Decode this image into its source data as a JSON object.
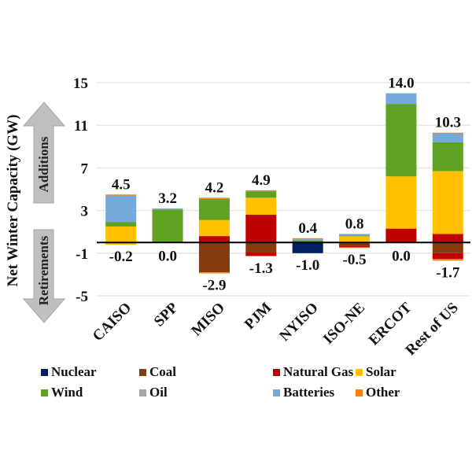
{
  "chart_data": {
    "type": "bar",
    "stacked": true,
    "title": "",
    "xlabel": "",
    "ylabel": "Net Winter Capacity (GW)",
    "ylim": [
      -5,
      15
    ],
    "yticks": [
      15,
      11,
      7,
      3,
      -1,
      -5
    ],
    "grid": true,
    "legend_position": "bottom",
    "annotations": {
      "up_arrow": "Additions",
      "down_arrow": "Retirements"
    },
    "categories": [
      "CAISO",
      "SPP",
      "MISO",
      "PJM",
      "NYISO",
      "ISO-NE",
      "ERCOT",
      "Rest of US"
    ],
    "colors": {
      "Nuclear": "#002060",
      "Coal": "#843C0C",
      "Natural Gas": "#C00000",
      "Solar": "#FFC000",
      "Wind": "#5FA221",
      "Oil": "#A6A6A6",
      "Batteries": "#74A9DA",
      "Other": "#FF7F0E"
    },
    "legend_order": [
      "Nuclear",
      "Coal",
      "Natural Gas",
      "Solar",
      "Wind",
      "Oil",
      "Batteries",
      "Other"
    ],
    "stack_order": [
      "Nuclear",
      "Coal",
      "Natural Gas",
      "Solar",
      "Wind",
      "Oil",
      "Batteries",
      "Other"
    ],
    "additions": [
      {
        "name": "Nuclear",
        "values": [
          0,
          0,
          0,
          0,
          0,
          0,
          0,
          0
        ]
      },
      {
        "name": "Coal",
        "values": [
          0,
          0,
          0,
          0,
          0,
          0,
          0,
          0
        ]
      },
      {
        "name": "Natural Gas",
        "values": [
          0,
          0,
          0.6,
          2.6,
          0,
          0,
          1.3,
          0.8
        ]
      },
      {
        "name": "Solar",
        "values": [
          1.5,
          0,
          1.5,
          1.6,
          0,
          0.6,
          4.9,
          5.9
        ]
      },
      {
        "name": "Wind",
        "values": [
          0.4,
          3.1,
          2.0,
          0.6,
          0.2,
          0.05,
          6.8,
          2.7
        ]
      },
      {
        "name": "Oil",
        "values": [
          0,
          0,
          0,
          0,
          0,
          0,
          0,
          0
        ]
      },
      {
        "name": "Batteries",
        "values": [
          2.5,
          0.1,
          0,
          0.05,
          0.1,
          0.15,
          1.0,
          0.8
        ]
      },
      {
        "name": "Other",
        "values": [
          0.1,
          0,
          0.1,
          0.05,
          0.1,
          0,
          0,
          0.1
        ]
      }
    ],
    "retirements": [
      {
        "name": "Nuclear",
        "values": [
          0,
          0,
          0,
          0,
          -1.0,
          0,
          0,
          0
        ]
      },
      {
        "name": "Coal",
        "values": [
          0,
          0,
          -2.8,
          -0.9,
          0,
          -0.3,
          0,
          -1.0
        ]
      },
      {
        "name": "Natural Gas",
        "values": [
          0,
          0,
          0,
          -0.35,
          0,
          -0.15,
          0,
          -0.55
        ]
      },
      {
        "name": "Solar",
        "values": [
          -0.2,
          0,
          0,
          0,
          0,
          0,
          0,
          0
        ]
      },
      {
        "name": "Wind",
        "values": [
          0,
          0,
          0,
          0,
          0,
          0,
          0,
          0
        ]
      },
      {
        "name": "Oil",
        "values": [
          0,
          0,
          0,
          0,
          0,
          0,
          0,
          0
        ]
      },
      {
        "name": "Batteries",
        "values": [
          0,
          0,
          0,
          0,
          0,
          0,
          0,
          0
        ]
      },
      {
        "name": "Other",
        "values": [
          0,
          0,
          -0.1,
          -0.05,
          0,
          -0.05,
          0,
          -0.15
        ]
      }
    ],
    "total_additions_labels": [
      "4.5",
      "3.2",
      "4.2",
      "4.9",
      "0.4",
      "0.8",
      "14.0",
      "10.3"
    ],
    "total_retirements_labels": [
      "-0.2",
      "0.0",
      "-2.9",
      "-1.3",
      "-1.0",
      "-0.5",
      "0.0",
      "-1.7"
    ]
  }
}
